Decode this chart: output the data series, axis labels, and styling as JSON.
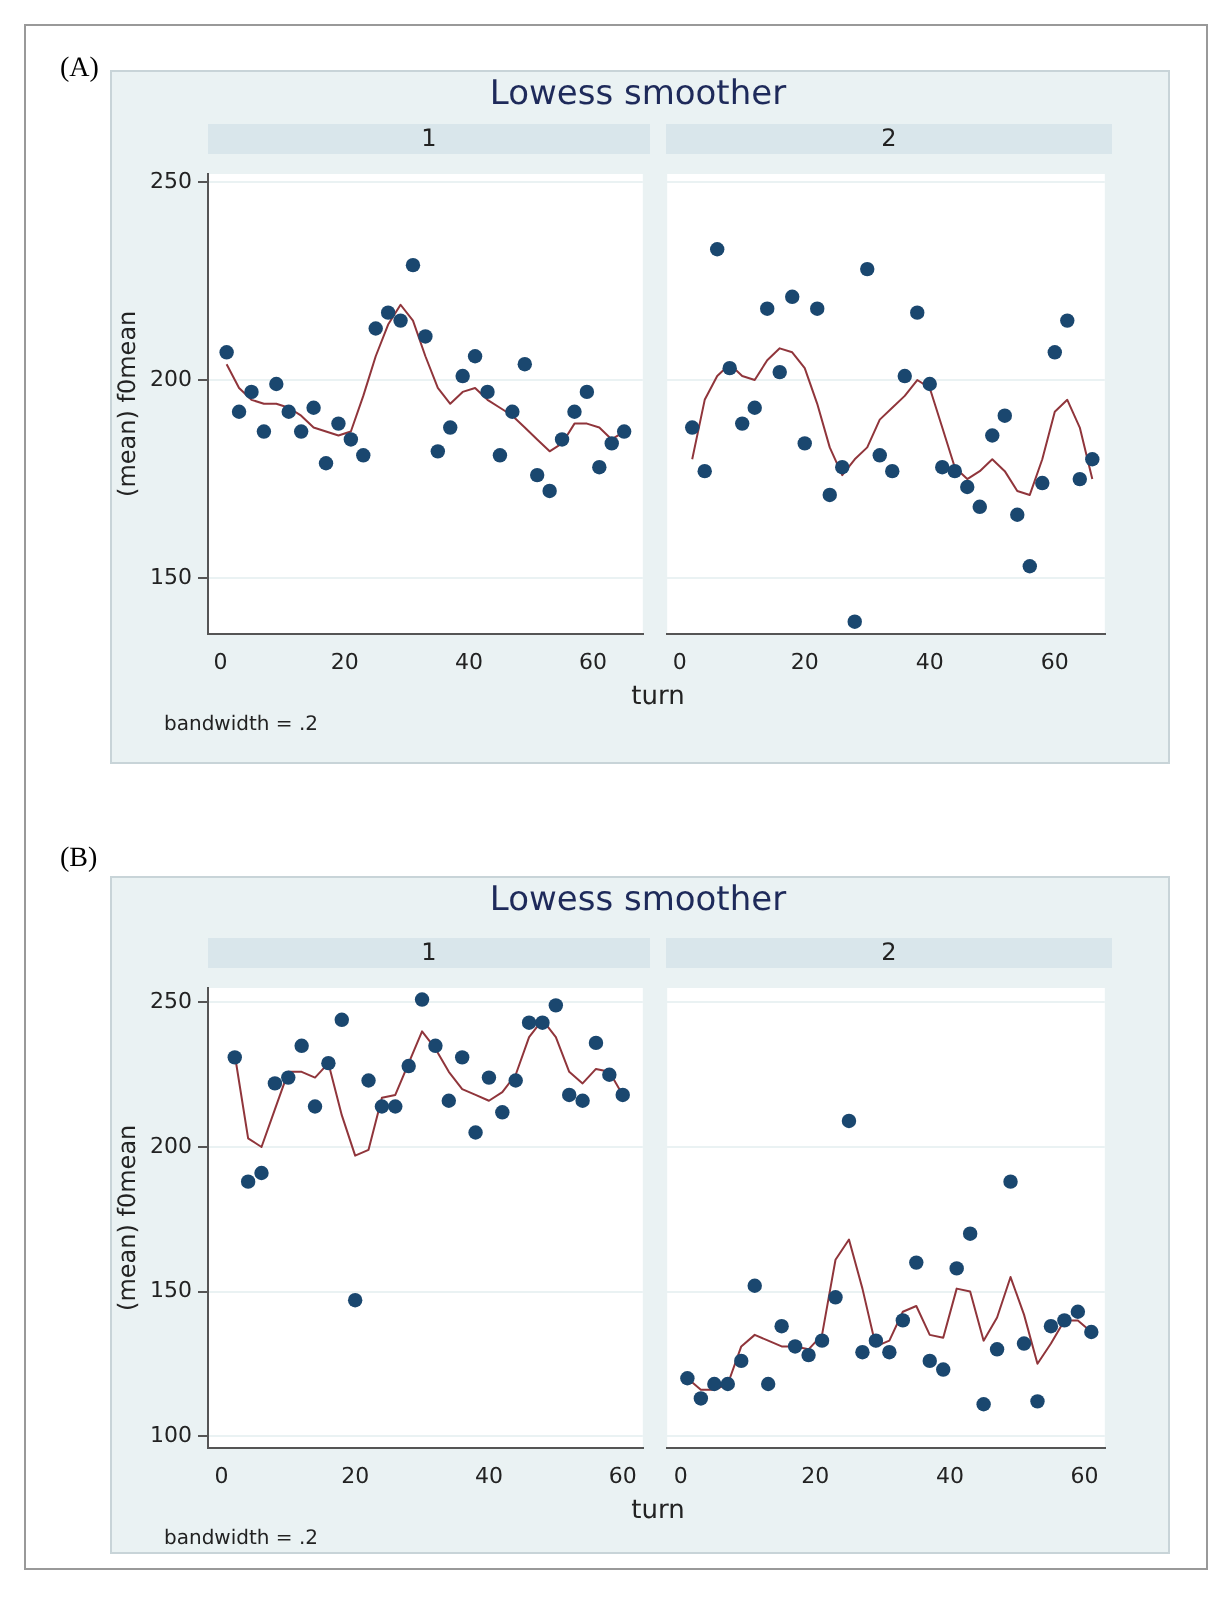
{
  "chart_data": [
    {
      "type": "scatter",
      "title": "Lowess smoother",
      "subtitle": "1",
      "ylabel": "(mean) f0mean",
      "xlabel": "turn",
      "annotations": [
        "(A)",
        "bandwidth = .2"
      ],
      "xlim": [
        -2,
        68
      ],
      "xticks": [
        0,
        20,
        40,
        60
      ],
      "ylim": [
        136,
        252
      ],
      "yticks": [
        150,
        200,
        250
      ],
      "grid": "y",
      "series": [
        {
          "type": "scatter",
          "marker": "circle",
          "color": "#1a476f",
          "x": [
            1,
            3,
            5,
            7,
            9,
            11,
            13,
            15,
            17,
            19,
            21,
            23,
            25,
            27,
            29,
            31,
            33,
            35,
            37,
            39,
            41,
            43,
            45,
            47,
            49,
            51,
            53,
            55,
            57,
            59,
            61,
            63,
            65
          ],
          "values": [
            207,
            192,
            197,
            187,
            199,
            192,
            187,
            193,
            179,
            189,
            185,
            181,
            213,
            217,
            215,
            229,
            211,
            182,
            188,
            201,
            206,
            197,
            181,
            192,
            204,
            176,
            172,
            185,
            192,
            197,
            178,
            184,
            187
          ]
        },
        {
          "type": "line",
          "marker": "none",
          "color": "#90353b",
          "x": [
            1,
            3,
            5,
            7,
            9,
            11,
            13,
            15,
            17,
            19,
            21,
            23,
            25,
            27,
            29,
            31,
            33,
            35,
            37,
            39,
            41,
            43,
            45,
            47,
            49,
            51,
            53,
            55,
            57,
            59,
            61,
            63,
            65
          ],
          "values": [
            204,
            198,
            195,
            194,
            194,
            193,
            191,
            188,
            187,
            186,
            187,
            196,
            206,
            214,
            219,
            215,
            206,
            198,
            194,
            197,
            198,
            195,
            193,
            191,
            188,
            185,
            182,
            184,
            189,
            189,
            188,
            185,
            187
          ]
        }
      ]
    },
    {
      "type": "scatter",
      "subtitle": "2",
      "xlim": [
        -2,
        68
      ],
      "xticks": [
        0,
        20,
        40,
        60
      ],
      "ylim": [
        136,
        252
      ],
      "yticks": [
        150,
        200,
        250
      ],
      "grid": "y",
      "tick_labels": "x",
      "series": [
        {
          "type": "scatter",
          "marker": "circle",
          "color": "#1a476f",
          "x": [
            2,
            4,
            6,
            8,
            10,
            12,
            14,
            16,
            18,
            20,
            22,
            24,
            26,
            28,
            30,
            32,
            34,
            36,
            38,
            40,
            42,
            44,
            46,
            48,
            50,
            52,
            54,
            56,
            58,
            60,
            62,
            64,
            66
          ],
          "values": [
            188,
            177,
            233,
            203,
            189,
            193,
            218,
            202,
            221,
            184,
            218,
            171,
            178,
            139,
            228,
            181,
            177,
            201,
            217,
            199,
            178,
            177,
            173,
            168,
            186,
            191,
            166,
            153,
            174,
            207,
            215,
            175,
            180
          ]
        },
        {
          "type": "line",
          "marker": "none",
          "color": "#90353b",
          "x": [
            2,
            4,
            6,
            8,
            10,
            12,
            14,
            16,
            18,
            20,
            22,
            24,
            26,
            28,
            30,
            32,
            34,
            36,
            38,
            40,
            42,
            44,
            46,
            48,
            50,
            52,
            54,
            56,
            58,
            60,
            62,
            64,
            66
          ],
          "values": [
            180,
            195,
            201,
            204,
            201,
            200,
            205,
            208,
            207,
            203,
            194,
            183,
            176,
            180,
            183,
            190,
            193,
            196,
            200,
            198,
            188,
            178,
            175,
            177,
            180,
            177,
            172,
            171,
            180,
            192,
            195,
            188,
            175
          ]
        }
      ]
    },
    {
      "type": "scatter",
      "title": "Lowess smoother",
      "subtitle": "1",
      "ylabel": "(mean) f0mean",
      "xlabel": "turn",
      "annotations": [
        "(B)",
        "bandwidth = .2"
      ],
      "xlim": [
        -2,
        63
      ],
      "xticks": [
        0,
        20,
        40,
        60
      ],
      "ylim": [
        96,
        255
      ],
      "yticks": [
        100,
        150,
        200,
        250
      ],
      "grid": "y",
      "series": [
        {
          "type": "scatter",
          "marker": "circle",
          "color": "#1a476f",
          "x": [
            2,
            4,
            6,
            8,
            10,
            12,
            14,
            16,
            18,
            20,
            22,
            24,
            26,
            28,
            30,
            32,
            34,
            36,
            38,
            40,
            42,
            44,
            46,
            48,
            50,
            52,
            54,
            56,
            58,
            60
          ],
          "values": [
            231,
            188,
            191,
            222,
            224,
            235,
            214,
            229,
            244,
            147,
            223,
            214,
            214,
            228,
            251,
            235,
            216,
            231,
            205,
            224,
            212,
            223,
            243,
            243,
            249,
            218,
            216,
            236,
            225,
            218
          ]
        },
        {
          "type": "line",
          "marker": "none",
          "color": "#90353b",
          "x": [
            2,
            4,
            6,
            8,
            10,
            12,
            14,
            16,
            18,
            20,
            22,
            24,
            26,
            28,
            30,
            32,
            34,
            36,
            38,
            40,
            42,
            44,
            46,
            48,
            50,
            52,
            54,
            56,
            58,
            60
          ],
          "values": [
            232,
            203,
            200,
            213,
            226,
            226,
            224,
            229,
            211,
            197,
            199,
            217,
            218,
            229,
            240,
            234,
            226,
            220,
            218,
            216,
            219,
            225,
            238,
            244,
            238,
            226,
            222,
            227,
            226,
            218
          ]
        }
      ]
    },
    {
      "type": "scatter",
      "subtitle": "2",
      "xlim": [
        -2,
        63
      ],
      "xticks": [
        0,
        20,
        40,
        60
      ],
      "ylim": [
        96,
        255
      ],
      "yticks": [
        100,
        150,
        200,
        250
      ],
      "grid": "y",
      "tick_labels": "x",
      "series": [
        {
          "type": "scatter",
          "marker": "circle",
          "color": "#1a476f",
          "x": [
            1,
            3,
            5,
            7,
            9,
            11,
            13,
            15,
            17,
            19,
            21,
            23,
            25,
            27,
            29,
            31,
            33,
            35,
            37,
            39,
            41,
            43,
            45,
            47,
            49,
            51,
            53,
            55,
            57,
            59,
            61
          ],
          "values": [
            120,
            113,
            118,
            118,
            126,
            152,
            118,
            138,
            131,
            128,
            133,
            148,
            209,
            129,
            133,
            129,
            140,
            160,
            126,
            123,
            158,
            170,
            111,
            130,
            188,
            132,
            112,
            138,
            140,
            143,
            136
          ]
        },
        {
          "type": "line",
          "marker": "none",
          "color": "#90353b",
          "x": [
            1,
            3,
            5,
            7,
            9,
            11,
            13,
            15,
            17,
            19,
            21,
            23,
            25,
            27,
            29,
            31,
            33,
            35,
            37,
            39,
            41,
            43,
            45,
            47,
            49,
            51,
            53,
            55,
            57,
            59,
            61
          ],
          "values": [
            120,
            116,
            116,
            118,
            131,
            135,
            133,
            131,
            131,
            130,
            135,
            161,
            168,
            151,
            131,
            133,
            143,
            145,
            135,
            134,
            151,
            150,
            133,
            141,
            155,
            142,
            125,
            132,
            140,
            140,
            136
          ]
        }
      ]
    }
  ]
}
